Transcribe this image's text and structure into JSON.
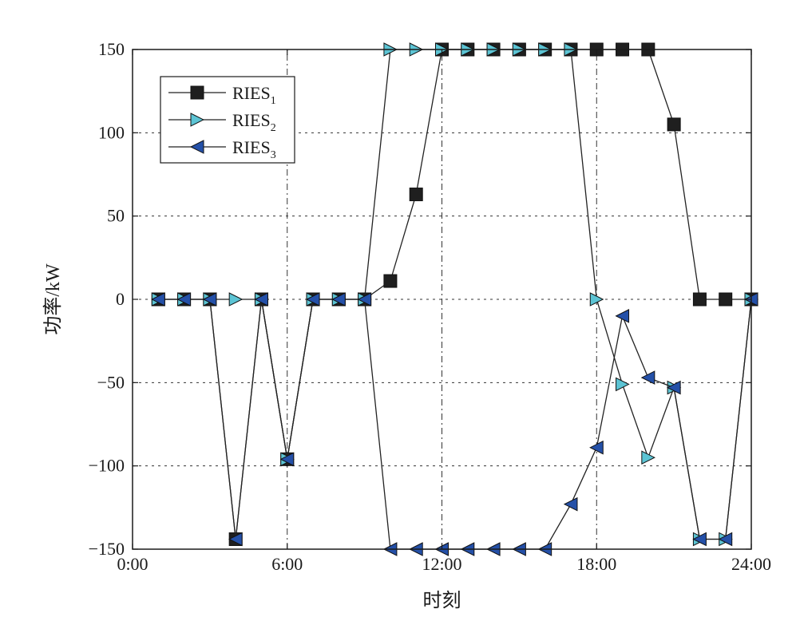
{
  "chart_data": {
    "type": "line",
    "xlabel": "时刻",
    "ylabel": "功率/kW",
    "xlim": [
      0,
      24
    ],
    "ylim": [
      -150,
      150
    ],
    "x_ticks": [
      "0:00",
      "6:00",
      "12:00",
      "18:00",
      "24:00"
    ],
    "y_ticks": [
      "150",
      "100",
      "50",
      "0",
      "−50",
      "−100",
      "−150"
    ],
    "grid": "dotted",
    "legend_position": "top-left",
    "x": [
      1,
      2,
      3,
      4,
      5,
      6,
      7,
      8,
      9,
      10,
      11,
      12,
      13,
      14,
      15,
      16,
      17,
      18,
      19,
      20,
      21,
      22,
      23,
      24
    ],
    "series": [
      {
        "name": "RIES",
        "subscript": "1",
        "marker": "square",
        "color": "#1f1f1f",
        "values": [
          0,
          0,
          0,
          -144,
          0,
          -96,
          0,
          0,
          0,
          11,
          63,
          150,
          150,
          150,
          150,
          150,
          150,
          150,
          150,
          150,
          105,
          0,
          0,
          0
        ]
      },
      {
        "name": "RIES",
        "subscript": "2",
        "marker": "triangle-right",
        "color": "#5cc4d4",
        "values": [
          0,
          0,
          0,
          0,
          0,
          -96,
          0,
          0,
          0,
          150,
          150,
          150,
          150,
          150,
          150,
          150,
          150,
          0,
          -51,
          -95,
          -53,
          -144,
          -144,
          0
        ]
      },
      {
        "name": "RIES",
        "subscript": "3",
        "marker": "triangle-left",
        "color": "#2450a8",
        "values": [
          0,
          0,
          0,
          -144,
          0,
          -96,
          0,
          0,
          0,
          -150,
          -150,
          -150,
          -150,
          -150,
          -150,
          -150,
          -123,
          -89,
          -10,
          -47,
          -53,
          -144,
          -144,
          0
        ]
      }
    ]
  }
}
